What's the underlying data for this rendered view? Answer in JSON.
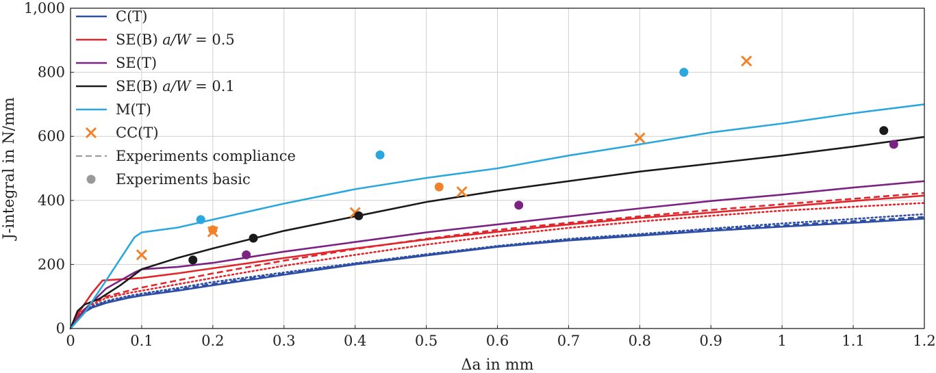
{
  "chart_data": {
    "type": "line",
    "xlabel": "Δa in mm",
    "ylabel": "J-integral in N/mm",
    "xlim": [
      0,
      1.2
    ],
    "ylim": [
      0,
      1000
    ],
    "xticks": [
      0,
      0.1,
      0.2,
      0.3,
      0.4,
      0.5,
      0.6,
      0.7,
      0.8,
      0.9,
      1,
      1.1,
      1.2
    ],
    "xtick_labels": [
      "0",
      "0.1",
      "0.2",
      "0.3",
      "0.4",
      "0.5",
      "0.6",
      "0.7",
      "0.8",
      "0.9",
      "1",
      "1.1",
      "1.2"
    ],
    "yticks": [
      0,
      200,
      400,
      600,
      800,
      1000
    ],
    "ytick_labels": [
      "0",
      "200",
      "400",
      "600",
      "800",
      "1,000"
    ],
    "grid": true,
    "legend_position": "top-left",
    "legend": [
      {
        "label": "C(T)",
        "kind": "line",
        "color": "#2d4ea3"
      },
      {
        "label": "SE(B) a/W = 0.5",
        "kind": "line",
        "color": "#e0262b"
      },
      {
        "label": "SE(T)",
        "kind": "line",
        "color": "#7b2382"
      },
      {
        "label": "SE(B) a/W = 0.1",
        "kind": "line",
        "color": "#1a1a1a"
      },
      {
        "label": "M(T)",
        "kind": "line",
        "color": "#2aa7dc"
      },
      {
        "label": "CC(T)",
        "kind": "cross",
        "color": "#f0822a"
      },
      {
        "label": "Experiments compliance",
        "kind": "dashed",
        "color": "#888888"
      },
      {
        "label": "Experiments basic",
        "kind": "dot",
        "color": "#999999"
      }
    ],
    "series": [
      {
        "name": "C(T)",
        "style": "solid",
        "color": "#2d4ea3",
        "x": [
          0,
          0.01,
          0.03,
          0.05,
          0.08,
          0.1,
          0.15,
          0.2,
          0.3,
          0.4,
          0.5,
          0.6,
          0.7,
          0.8,
          0.9,
          1.0,
          1.1,
          1.2
        ],
        "y": [
          0,
          38,
          65,
          80,
          95,
          103,
          118,
          135,
          168,
          200,
          228,
          255,
          275,
          290,
          305,
          318,
          330,
          343
        ]
      },
      {
        "name": "C(T)",
        "style": "dashed",
        "color": "#2d4ea3",
        "x": [
          0,
          0.01,
          0.03,
          0.05,
          0.08,
          0.1,
          0.15,
          0.2,
          0.3,
          0.4,
          0.5,
          0.6,
          0.7,
          0.8,
          0.9,
          1.0,
          1.1,
          1.2
        ],
        "y": [
          0,
          40,
          67,
          82,
          97,
          105,
          121,
          139,
          171,
          202,
          230,
          256,
          277,
          292,
          308,
          322,
          335,
          348
        ]
      },
      {
        "name": "C(T)",
        "style": "dotted",
        "color": "#2d4ea3",
        "x": [
          0,
          0.01,
          0.03,
          0.05,
          0.08,
          0.1,
          0.15,
          0.2,
          0.3,
          0.4,
          0.5,
          0.6,
          0.7,
          0.8,
          0.9,
          1.0,
          1.1,
          1.2
        ],
        "y": [
          0,
          42,
          70,
          86,
          101,
          109,
          126,
          145,
          175,
          204,
          232,
          258,
          280,
          295,
          312,
          328,
          342,
          357
        ]
      },
      {
        "name": "SE(B) a/W = 0.5",
        "style": "solid",
        "color": "#e0262b",
        "x": [
          0,
          0.01,
          0.03,
          0.045,
          0.1,
          0.15,
          0.2,
          0.3,
          0.4,
          0.5,
          0.6,
          0.7,
          0.8,
          0.9,
          1.0,
          1.1,
          1.2
        ],
        "y": [
          0,
          45,
          110,
          150,
          158,
          172,
          188,
          220,
          250,
          278,
          302,
          325,
          345,
          362,
          380,
          398,
          415
        ]
      },
      {
        "name": "SE(B) a/W = 0.5",
        "style": "dashed",
        "color": "#e0262b",
        "x": [
          0,
          0.01,
          0.03,
          0.05,
          0.08,
          0.1,
          0.15,
          0.2,
          0.3,
          0.4,
          0.5,
          0.6,
          0.7,
          0.8,
          0.9,
          1.0,
          1.1,
          1.2
        ],
        "y": [
          0,
          42,
          80,
          100,
          117,
          128,
          150,
          172,
          212,
          248,
          280,
          308,
          330,
          350,
          370,
          388,
          405,
          423
        ]
      },
      {
        "name": "SE(B) a/W = 0.5",
        "style": "dotted",
        "color": "#e0262b",
        "x": [
          0,
          0.01,
          0.03,
          0.05,
          0.08,
          0.1,
          0.15,
          0.2,
          0.3,
          0.4,
          0.5,
          0.6,
          0.7,
          0.8,
          0.9,
          1.0,
          1.1,
          1.2
        ],
        "y": [
          0,
          40,
          75,
          95,
          110,
          118,
          138,
          158,
          196,
          230,
          262,
          290,
          314,
          334,
          352,
          368,
          380,
          392
        ]
      },
      {
        "name": "SE(T)",
        "style": "solid",
        "color": "#7b2382",
        "x": [
          0,
          0.02,
          0.05,
          0.09,
          0.1,
          0.15,
          0.2,
          0.3,
          0.4,
          0.5,
          0.6,
          0.7,
          0.8,
          0.9,
          1.0,
          1.1,
          1.2
        ],
        "y": [
          0,
          60,
          125,
          175,
          185,
          192,
          205,
          240,
          270,
          300,
          325,
          350,
          375,
          398,
          418,
          440,
          460
        ]
      },
      {
        "name": "SE(B) a/W = 0.1",
        "style": "solid",
        "color": "#1a1a1a",
        "x": [
          0,
          0.01,
          0.02,
          0.04,
          0.07,
          0.1,
          0.15,
          0.2,
          0.3,
          0.4,
          0.5,
          0.6,
          0.7,
          0.8,
          0.9,
          1.0,
          1.1,
          1.2
        ],
        "y": [
          0,
          55,
          75,
          92,
          135,
          185,
          220,
          250,
          305,
          350,
          395,
          430,
          460,
          490,
          515,
          540,
          568,
          598
        ]
      },
      {
        "name": "M(T)",
        "style": "solid",
        "color": "#2aa7dc",
        "x": [
          0,
          0.02,
          0.05,
          0.09,
          0.1,
          0.15,
          0.2,
          0.3,
          0.4,
          0.5,
          0.6,
          0.7,
          0.8,
          0.9,
          1.0,
          1.1,
          1.2
        ],
        "y": [
          0,
          50,
          150,
          285,
          300,
          315,
          340,
          390,
          435,
          470,
          500,
          540,
          575,
          612,
          640,
          672,
          700
        ]
      }
    ],
    "points": [
      {
        "group": "CC(T)",
        "marker": "cross",
        "color": "#f0822a",
        "x": [
          0.1,
          0.2,
          0.4,
          0.55,
          0.8,
          0.95
        ],
        "y": [
          230,
          302,
          362,
          427,
          595,
          835
        ]
      },
      {
        "group": "M(T)",
        "marker": "dot",
        "color": "#2aa7dc",
        "x": [
          0.183,
          0.435,
          0.862
        ],
        "y": [
          340,
          542,
          800
        ]
      },
      {
        "group": "SE(B) a/W = 0.1",
        "marker": "dot",
        "color": "#1a1a1a",
        "x": [
          0.172,
          0.257,
          0.405,
          1.143
        ],
        "y": [
          214,
          282,
          352,
          618
        ]
      },
      {
        "group": "SE(T)",
        "marker": "dot",
        "color": "#7b2382",
        "x": [
          0.247,
          0.63,
          1.157
        ],
        "y": [
          230,
          385,
          575
        ]
      },
      {
        "group": "CC(T)",
        "marker": "dot",
        "color": "#f0822a",
        "x": [
          0.2,
          0.518
        ],
        "y": [
          308,
          442
        ]
      }
    ]
  }
}
